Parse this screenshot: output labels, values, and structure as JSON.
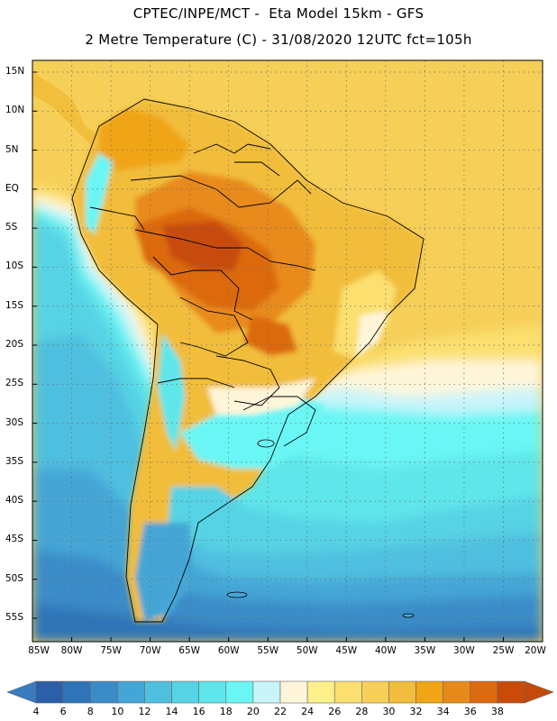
{
  "header": {
    "line1": "CPTEC/INPE/MCT -  Eta Model 15km - GFS",
    "line2": "2 Metre Temperature (C) - 31/08/2020 12UTC fct=105h"
  },
  "map": {
    "lat_labels": [
      "15N",
      "10N",
      "5N",
      "EQ",
      "5S",
      "10S",
      "15S",
      "20S",
      "25S",
      "30S",
      "35S",
      "40S",
      "45S",
      "50S",
      "55S"
    ],
    "lon_labels": [
      "85W",
      "80W",
      "75W",
      "70W",
      "65W",
      "60W",
      "55W",
      "50W",
      "45W",
      "40W",
      "35W",
      "30W",
      "25W",
      "20W"
    ],
    "lon_range": [
      -85,
      -20
    ],
    "lat_range": [
      16.5,
      -58
    ]
  },
  "colorbar": {
    "labels": [
      "4",
      "6",
      "8",
      "10",
      "12",
      "14",
      "16",
      "18",
      "20",
      "22",
      "24",
      "26",
      "28",
      "30",
      "32",
      "34",
      "36",
      "38"
    ],
    "colors": [
      "#2b5fa8",
      "#2f74b8",
      "#3a8cc8",
      "#44a6d6",
      "#4fbfdf",
      "#57d3e4",
      "#5fe6ea",
      "#6af6f4",
      "#c8f4fa",
      "#fff6da",
      "#fef08a",
      "#fbe070",
      "#f6cf58",
      "#f1bd3a",
      "#f0a514",
      "#e88a1a",
      "#dc6a10",
      "#c84c08"
    ],
    "low_color": "#3a7bc0",
    "high_color": "#c44a0a"
  }
}
